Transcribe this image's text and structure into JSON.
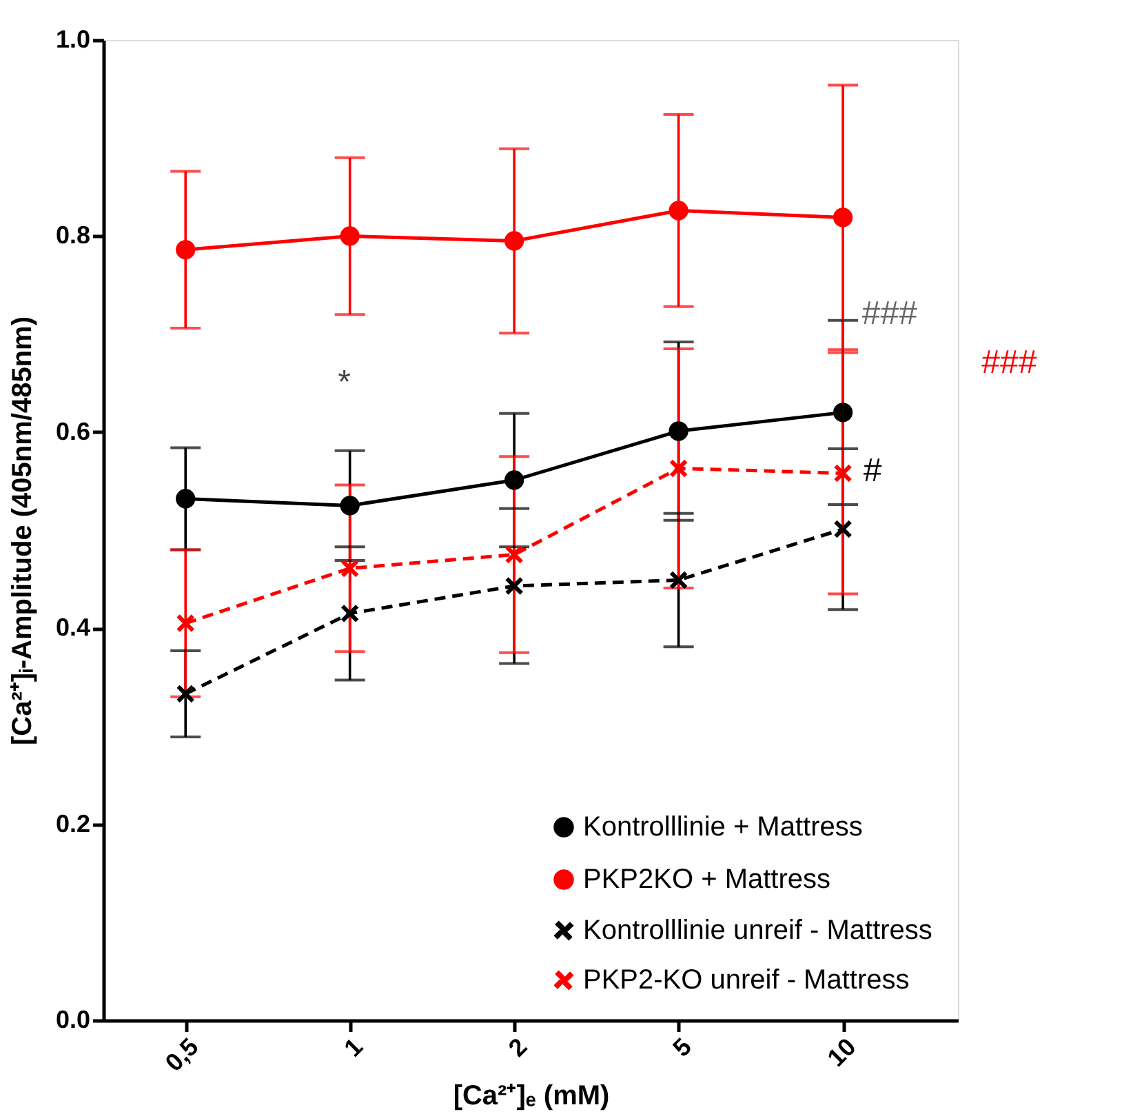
{
  "chart_data": {
    "type": "line",
    "xlabel": "[Ca²⁺]ₑ (mM)",
    "ylabel": "[Ca²⁺]ᵢ-Amplitude (405nm/485nm)",
    "categories": [
      "0,5",
      "1",
      "2",
      "5",
      "10"
    ],
    "ylim": [
      0,
      1
    ],
    "yticks": [
      {
        "value": 0,
        "label": "0.0"
      },
      {
        "value": 0.2,
        "label": "0.2"
      },
      {
        "value": 0.4,
        "label": "0.4"
      },
      {
        "value": 0.6,
        "label": "0.6"
      },
      {
        "value": 0.8,
        "label": "0.8"
      },
      {
        "value": 1,
        "label": "1.0"
      }
    ],
    "grid": false,
    "legend": "bottom right",
    "series": [
      {
        "name": "Kontrolllinie + Mattress",
        "color": "#000000",
        "marker": "circle",
        "line_style": "solid",
        "values": [
          0.532,
          0.525,
          0.551,
          0.601,
          0.62
        ],
        "errors": [
          0.052,
          0.056,
          0.068,
          0.091,
          0.094
        ]
      },
      {
        "name": "PKP2KO + Mattress",
        "color": "#ff0000",
        "marker": "circle",
        "line_style": "solid",
        "values": [
          0.786,
          0.8,
          0.795,
          0.826,
          0.819
        ],
        "errors": [
          0.08,
          0.08,
          0.094,
          0.098,
          0.135
        ]
      },
      {
        "name": "Kontrolllinie unreif - Mattress",
        "color": "#000000",
        "marker": "cross",
        "line_style": "dashed",
        "values": [
          0.333,
          0.415,
          0.443,
          0.449,
          0.501
        ],
        "errors": [
          0.044,
          0.068,
          0.079,
          0.068,
          0.082
        ]
      },
      {
        "name": "PKP2-KO unreif - Mattress",
        "color": "#ff0000",
        "marker": "cross",
        "line_style": "dashed",
        "values": [
          0.405,
          0.461,
          0.475,
          0.563,
          0.558
        ],
        "errors": [
          0.075,
          0.085,
          0.1,
          0.122,
          0.123
        ]
      }
    ],
    "annotations": [
      "*",
      "###",
      "#",
      "###"
    ]
  }
}
